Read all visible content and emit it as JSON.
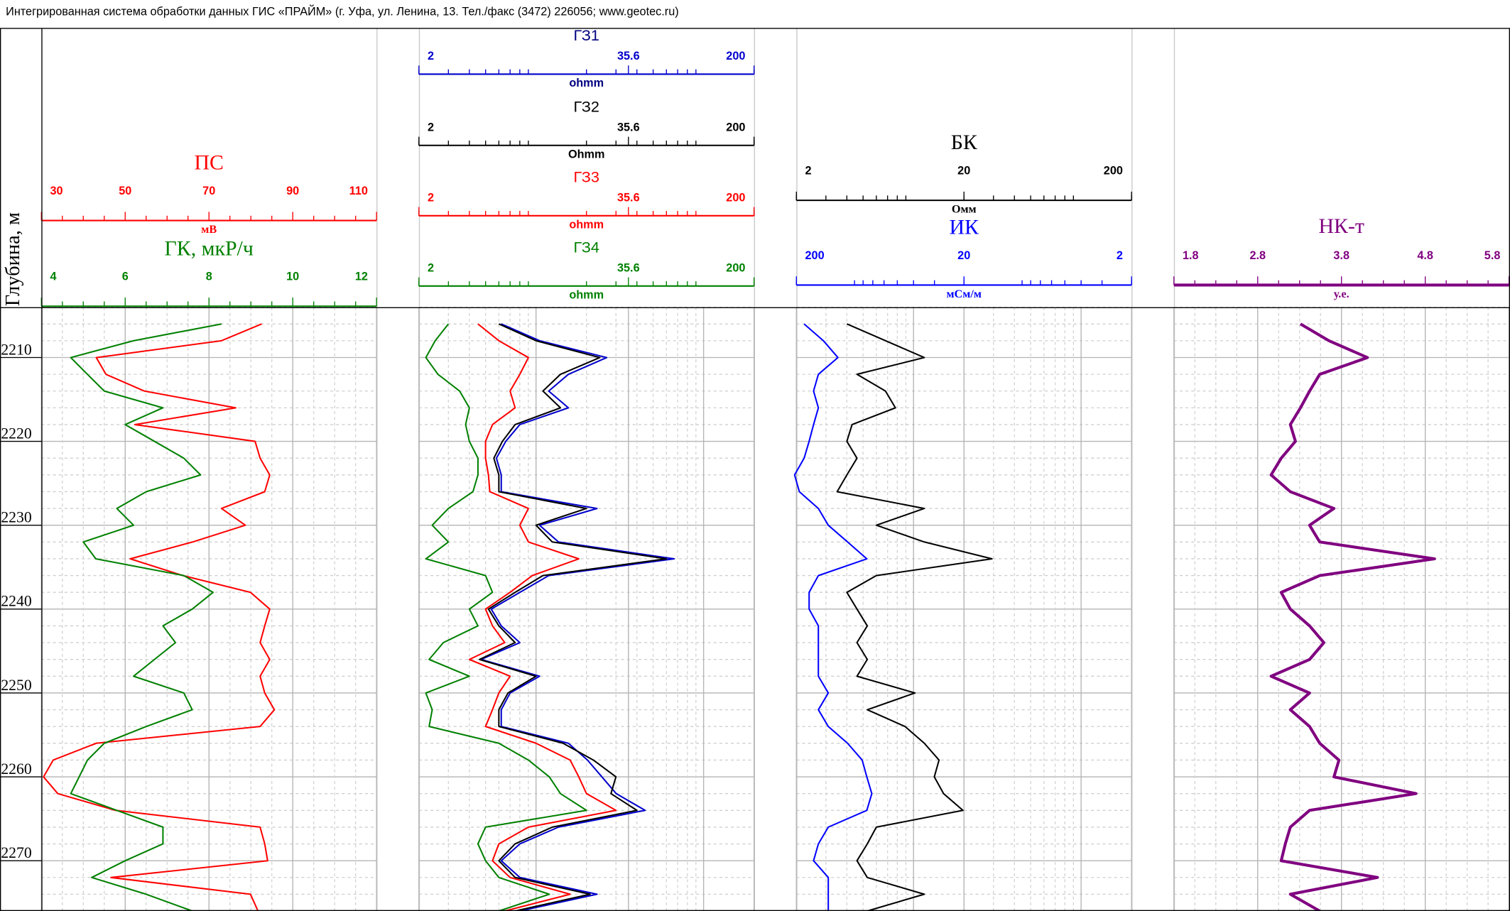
{
  "header": "Интегрированная система обработки данных ГИС «ПРАЙМ» (г. Уфа, ул. Ленина, 13. Тел./факс (3472) 226056; www.geotec.ru)",
  "chart_data": [
    {
      "type": "depth",
      "ylabel": "Глубина, м",
      "ylim": [
        2204,
        2276
      ],
      "yticks": [
        2210,
        2220,
        2230,
        2240,
        2250,
        2260,
        2270
      ],
      "grid": true
    },
    {
      "type": "line",
      "grid": true,
      "depth": [
        2206,
        2208,
        2210,
        2212,
        2214,
        2216,
        2218,
        2220,
        2222,
        2224,
        2226,
        2228,
        2230,
        2232,
        2234,
        2236,
        2238,
        2240,
        2242,
        2244,
        2246,
        2248,
        2250,
        2252,
        2254,
        2256,
        2258,
        2260,
        2262,
        2264,
        2266,
        2268,
        2270,
        2272,
        2274,
        2276
      ],
      "series": [
        {
          "name": "ПС",
          "unit": "мВ",
          "color": "#ff0000",
          "xscale": "linear",
          "xlim": [
            30,
            110
          ],
          "xticks": [
            30,
            50,
            70,
            90,
            110
          ],
          "values": [
            82.6,
            73.0,
            43.1,
            45.4,
            54.6,
            76.4,
            52.3,
            81.0,
            82.2,
            84.5,
            83.3,
            73.0,
            78.7,
            66.1,
            51.2,
            63.8,
            79.9,
            84.5,
            83.3,
            82.2,
            84.5,
            82.2,
            83.3,
            85.6,
            82.2,
            43.1,
            32.8,
            30.5,
            33.9,
            47.7,
            82.2,
            83.3,
            84.0,
            46.6,
            79.9,
            81.7
          ]
        },
        {
          "name": "ГК, мкР/ч",
          "color": "#008000",
          "xscale": "linear",
          "xlim": [
            4,
            12
          ],
          "xticks": [
            4,
            6,
            8,
            10,
            12
          ],
          "values": [
            8.3,
            6.2,
            4.7,
            5.1,
            5.5,
            6.9,
            6.0,
            6.7,
            7.4,
            7.8,
            6.5,
            5.8,
            6.2,
            5.0,
            5.3,
            7.4,
            8.1,
            7.6,
            6.9,
            7.2,
            6.7,
            6.2,
            7.4,
            7.6,
            6.5,
            5.5,
            5.1,
            4.9,
            4.7,
            5.8,
            6.9,
            6.9,
            6.0,
            5.2,
            6.5,
            7.6
          ]
        }
      ]
    },
    {
      "type": "line",
      "grid": true,
      "depth": [
        2206,
        2208,
        2210,
        2212,
        2214,
        2216,
        2218,
        2220,
        2222,
        2224,
        2226,
        2228,
        2230,
        2232,
        2234,
        2236,
        2238,
        2240,
        2242,
        2244,
        2246,
        2248,
        2250,
        2252,
        2254,
        2256,
        2258,
        2260,
        2262,
        2264,
        2266,
        2268,
        2270,
        2272,
        2274,
        2276
      ],
      "series": [
        {
          "name": "ГЗ1",
          "unit": "ohmm",
          "color": "#0000cc",
          "xscale": "log",
          "xlim": [
            2,
            200
          ],
          "xticks": [
            2,
            35.6,
            200
          ],
          "values": [
            6.2,
            10.5,
            26.4,
            15.6,
            11.9,
            15.6,
            8.0,
            6.6,
            5.8,
            6.2,
            6.2,
            23.1,
            10.5,
            13.6,
            66.7,
            11.9,
            8.0,
            5.4,
            6.2,
            8.0,
            4.7,
            10.5,
            7.0,
            6.2,
            6.2,
            15.6,
            20.3,
            24.7,
            30.1,
            44.8,
            13.6,
            8.0,
            6.2,
            8.0,
            23.1,
            8.0
          ]
        },
        {
          "name": "ГЗ2",
          "unit": "Ohmm",
          "color": "#000000",
          "xscale": "log",
          "xlim": [
            2,
            200
          ],
          "xticks": [
            2,
            35.6,
            200
          ],
          "values": [
            6.0,
            10.0,
            24.0,
            14.0,
            11.0,
            14.0,
            7.5,
            6.3,
            5.6,
            6.0,
            6.0,
            20.0,
            10.0,
            12.5,
            60.0,
            11.0,
            7.5,
            5.2,
            6.0,
            7.5,
            4.6,
            10.0,
            6.8,
            6.0,
            6.0,
            14.5,
            22.0,
            30.0,
            28.0,
            40.0,
            12.5,
            7.5,
            6.0,
            7.5,
            21.0,
            7.5
          ]
        },
        {
          "name": "ГЗ3",
          "unit": "ohmm",
          "color": "#ff0000",
          "xscale": "log",
          "xlim": [
            2,
            200
          ],
          "xticks": [
            2,
            35.6,
            200
          ],
          "values": [
            4.5,
            6.0,
            9.0,
            8.0,
            7.0,
            7.5,
            5.5,
            5.0,
            5.0,
            5.2,
            5.3,
            9.0,
            8.0,
            9.0,
            18.0,
            9.5,
            7.0,
            5.0,
            5.5,
            6.5,
            4.0,
            7.0,
            6.0,
            5.5,
            5.0,
            10.0,
            16.0,
            18.0,
            20.0,
            30.0,
            9.0,
            6.0,
            5.5,
            7.0,
            16.0,
            6.5
          ]
        },
        {
          "name": "ГЗ4",
          "unit": "ohmm",
          "color": "#008000",
          "xscale": "log",
          "xlim": [
            2,
            200
          ],
          "xticks": [
            2,
            35.6,
            200
          ],
          "values": [
            3.0,
            2.5,
            2.2,
            2.6,
            3.5,
            4.0,
            3.8,
            4.0,
            4.5,
            4.5,
            4.2,
            3.0,
            2.4,
            3.0,
            2.2,
            5.0,
            5.5,
            4.0,
            4.5,
            2.8,
            2.3,
            4.0,
            2.2,
            2.4,
            2.3,
            6.0,
            9.0,
            12.0,
            14.0,
            20.0,
            5.0,
            4.5,
            5.0,
            6.0,
            12.0,
            6.0
          ]
        }
      ]
    },
    {
      "type": "line",
      "grid": true,
      "depth": [
        2206,
        2208,
        2210,
        2212,
        2214,
        2216,
        2218,
        2220,
        2222,
        2224,
        2226,
        2228,
        2230,
        2232,
        2234,
        2236,
        2238,
        2240,
        2242,
        2244,
        2246,
        2248,
        2250,
        2252,
        2254,
        2256,
        2258,
        2260,
        2262,
        2264,
        2266,
        2268,
        2270,
        2272,
        2274,
        2276
      ],
      "series": [
        {
          "name": "БК",
          "unit": "Омм",
          "color": "#000000",
          "xscale": "log",
          "xlim": [
            2,
            200
          ],
          "xticks": [
            2,
            20,
            200
          ],
          "values": [
            4.0,
            6.8,
            11.6,
            4.6,
            6.8,
            7.8,
            4.3,
            4.0,
            4.6,
            4.0,
            3.5,
            11.6,
            6.0,
            11.6,
            29.4,
            6.0,
            4.0,
            4.6,
            5.3,
            4.6,
            5.3,
            4.6,
            10.2,
            5.3,
            8.9,
            11.6,
            14.2,
            13.3,
            15.1,
            19.7,
            6.0,
            5.3,
            4.6,
            5.3,
            11.6,
            5.3
          ]
        },
        {
          "name": "ИК",
          "unit": "мСм/м",
          "color": "#0000ff",
          "xscale": "log",
          "xlim": [
            200,
            2
          ],
          "xticks": [
            200,
            20,
            2
          ],
          "values": [
            180,
            138,
            113,
            148,
            158,
            148,
            158,
            168,
            180,
            205,
            192,
            148,
            129,
            99,
            76,
            148,
            168,
            168,
            148,
            148,
            148,
            148,
            129,
            148,
            129,
            99,
            81,
            76,
            71,
            76,
            129,
            148,
            158,
            129,
            129,
            129
          ]
        }
      ]
    },
    {
      "type": "line",
      "grid": true,
      "depth": [
        2206,
        2208,
        2210,
        2212,
        2214,
        2216,
        2218,
        2220,
        2222,
        2224,
        2226,
        2228,
        2230,
        2232,
        2234,
        2236,
        2238,
        2240,
        2242,
        2244,
        2246,
        2248,
        2250,
        2252,
        2254,
        2256,
        2258,
        2260,
        2262,
        2264,
        2266,
        2268,
        2270,
        2272,
        2274,
        2276
      ],
      "series": [
        {
          "name": "НК-т",
          "unit": "у.е.",
          "color": "#800080",
          "xscale": "linear",
          "xlim": [
            1.8,
            5.8
          ],
          "xticks": [
            1.8,
            2.8,
            3.8,
            4.8,
            5.8
          ],
          "values": [
            3.31,
            3.65,
            4.11,
            3.54,
            3.42,
            3.31,
            3.19,
            3.25,
            3.08,
            2.96,
            3.19,
            3.71,
            3.42,
            3.54,
            4.91,
            3.54,
            3.08,
            3.19,
            3.42,
            3.59,
            3.42,
            2.96,
            3.42,
            3.19,
            3.42,
            3.54,
            3.77,
            3.71,
            4.69,
            3.42,
            3.19,
            3.13,
            3.08,
            4.23,
            3.19,
            3.54
          ]
        }
      ]
    }
  ]
}
